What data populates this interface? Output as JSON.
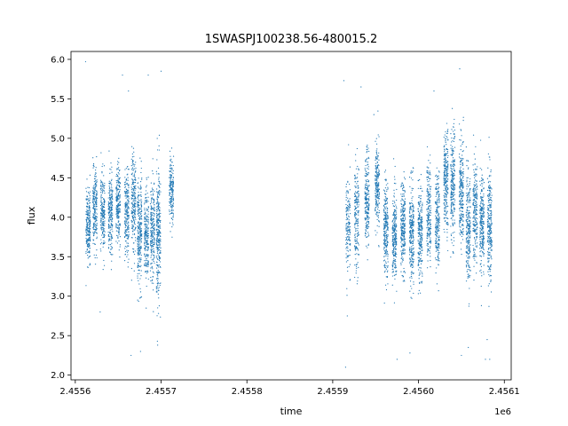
{
  "chart_data": {
    "type": "scatter",
    "title": "1SWASPJ100238.56-480015.2",
    "xlabel": "time",
    "ylabel": "flux",
    "x_offset_label": "1e6",
    "xlim": [
      2455595,
      2456108
    ],
    "ylim": [
      1.94,
      6.1
    ],
    "x_ticks": [
      2455600,
      2455700,
      2455800,
      2455900,
      2456000,
      2456100
    ],
    "x_tick_labels": [
      "2.4556",
      "2.4557",
      "2.4558",
      "2.4559",
      "2.4560",
      "2.4561"
    ],
    "y_ticks": [
      2.0,
      2.5,
      3.0,
      3.5,
      4.0,
      4.5,
      5.0,
      5.5,
      6.0
    ],
    "y_tick_labels": [
      "2.0",
      "2.5",
      "3.0",
      "3.5",
      "4.0",
      "4.5",
      "5.0",
      "5.5",
      "6.0"
    ],
    "grid": false,
    "point_color": "#1f77b4",
    "point_size": 0.6,
    "observation_clusters": [
      {
        "x": 2455615,
        "y_mean": 3.9,
        "y_spread": 0.22,
        "points": 240
      },
      {
        "x": 2455623,
        "y_mean": 4.1,
        "y_spread": 0.24,
        "points": 220
      },
      {
        "x": 2455632,
        "y_mean": 4.05,
        "y_spread": 0.25,
        "points": 200
      },
      {
        "x": 2455641,
        "y_mean": 4.05,
        "y_spread": 0.25,
        "points": 220
      },
      {
        "x": 2455650,
        "y_mean": 4.15,
        "y_spread": 0.25,
        "points": 220
      },
      {
        "x": 2455660,
        "y_mean": 4.05,
        "y_spread": 0.26,
        "points": 220
      },
      {
        "x": 2455668,
        "y_mean": 4.2,
        "y_spread": 0.3,
        "points": 220
      },
      {
        "x": 2455675,
        "y_mean": 3.8,
        "y_spread": 0.35,
        "points": 260
      },
      {
        "x": 2455683,
        "y_mean": 3.75,
        "y_spread": 0.3,
        "points": 220
      },
      {
        "x": 2455690,
        "y_mean": 3.8,
        "y_spread": 0.3,
        "points": 220
      },
      {
        "x": 2455697,
        "y_mean": 3.85,
        "y_spread": 0.42,
        "points": 300
      },
      {
        "x": 2455712,
        "y_mean": 4.35,
        "y_spread": 0.2,
        "points": 180
      },
      {
        "x": 2455918,
        "y_mean": 3.85,
        "y_spread": 0.3,
        "points": 160
      },
      {
        "x": 2455928,
        "y_mean": 4.0,
        "y_spread": 0.35,
        "points": 200
      },
      {
        "x": 2455940,
        "y_mean": 4.2,
        "y_spread": 0.3,
        "points": 220
      },
      {
        "x": 2455952,
        "y_mean": 4.4,
        "y_spread": 0.25,
        "points": 220
      },
      {
        "x": 2455962,
        "y_mean": 3.85,
        "y_spread": 0.3,
        "points": 260
      },
      {
        "x": 2455972,
        "y_mean": 3.75,
        "y_spread": 0.3,
        "points": 260
      },
      {
        "x": 2455982,
        "y_mean": 3.85,
        "y_spread": 0.28,
        "points": 260
      },
      {
        "x": 2455992,
        "y_mean": 3.8,
        "y_spread": 0.3,
        "points": 260
      },
      {
        "x": 2456002,
        "y_mean": 3.8,
        "y_spread": 0.3,
        "points": 240
      },
      {
        "x": 2456012,
        "y_mean": 4.05,
        "y_spread": 0.3,
        "points": 220
      },
      {
        "x": 2456022,
        "y_mean": 3.95,
        "y_spread": 0.3,
        "points": 220
      },
      {
        "x": 2456032,
        "y_mean": 4.45,
        "y_spread": 0.3,
        "points": 260
      },
      {
        "x": 2456040,
        "y_mean": 4.4,
        "y_spread": 0.35,
        "points": 240
      },
      {
        "x": 2456050,
        "y_mean": 4.35,
        "y_spread": 0.35,
        "points": 240
      },
      {
        "x": 2456058,
        "y_mean": 3.85,
        "y_spread": 0.35,
        "points": 240
      },
      {
        "x": 2456066,
        "y_mean": 4.05,
        "y_spread": 0.3,
        "points": 220
      },
      {
        "x": 2456074,
        "y_mean": 3.9,
        "y_spread": 0.3,
        "points": 240
      },
      {
        "x": 2456083,
        "y_mean": 3.9,
        "y_spread": 0.35,
        "points": 260
      }
    ],
    "outliers": [
      {
        "x": 2455612,
        "y": 5.97
      },
      {
        "x": 2455629,
        "y": 2.8
      },
      {
        "x": 2455655,
        "y": 5.8
      },
      {
        "x": 2455662,
        "y": 5.6
      },
      {
        "x": 2455665,
        "y": 2.25
      },
      {
        "x": 2455676,
        "y": 2.3
      },
      {
        "x": 2455685,
        "y": 5.8
      },
      {
        "x": 2455696,
        "y": 2.38
      },
      {
        "x": 2455700,
        "y": 5.85
      },
      {
        "x": 2455913,
        "y": 5.73
      },
      {
        "x": 2455915,
        "y": 2.1
      },
      {
        "x": 2455917,
        "y": 2.75
      },
      {
        "x": 2455933,
        "y": 5.65
      },
      {
        "x": 2455948,
        "y": 5.3
      },
      {
        "x": 2455975,
        "y": 2.2
      },
      {
        "x": 2455990,
        "y": 2.28
      },
      {
        "x": 2456018,
        "y": 5.6
      },
      {
        "x": 2456048,
        "y": 5.88
      },
      {
        "x": 2456050,
        "y": 2.25
      },
      {
        "x": 2456058,
        "y": 2.35
      },
      {
        "x": 2456078,
        "y": 2.2
      },
      {
        "x": 2456080,
        "y": 2.45
      },
      {
        "x": 2456083,
        "y": 2.2
      }
    ]
  }
}
